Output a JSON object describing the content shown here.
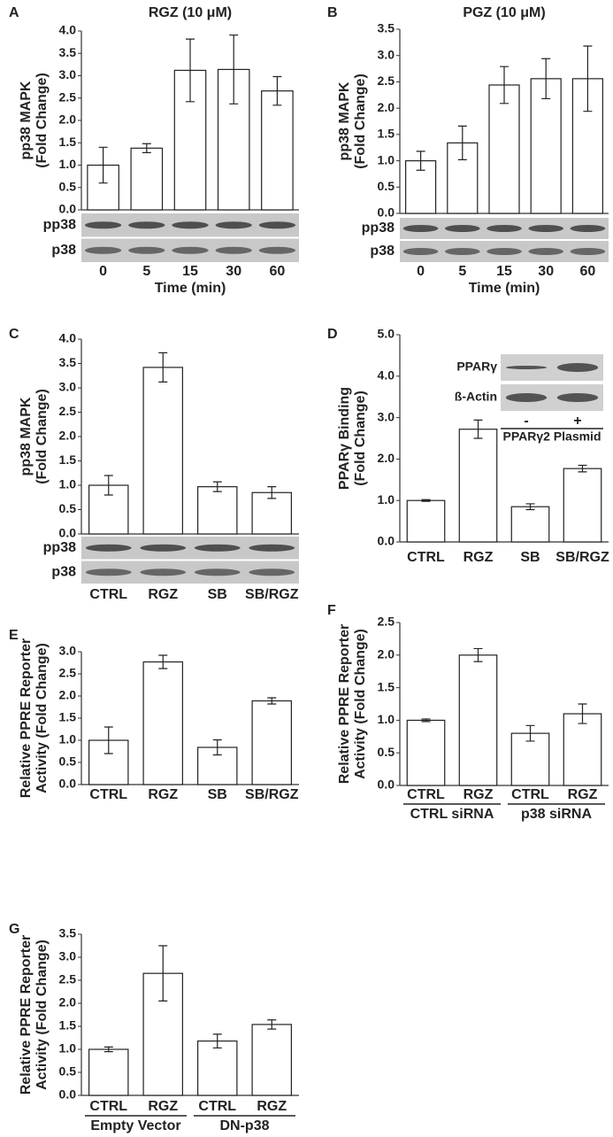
{
  "chart_data": [
    {
      "type": "bar",
      "panel": "A",
      "title": "RGZ (10 μM)",
      "ylabel": [
        "pp38 MAPK",
        "(Fold Change)"
      ],
      "categories": [
        "0",
        "5",
        "15",
        "30",
        "60"
      ],
      "values": [
        1.0,
        1.38,
        3.12,
        3.14,
        2.66
      ],
      "errors": [
        0.4,
        0.1,
        0.7,
        0.77,
        0.32
      ],
      "ylim": [
        0,
        4
      ],
      "yticks": [
        {
          "value": 0,
          "label": "0.0"
        },
        {
          "value": 0.5,
          "label": "0.5"
        },
        {
          "value": 1,
          "label": "1.0"
        },
        {
          "value": 1.5,
          "label": "1.5"
        },
        {
          "value": 2,
          "label": "2.0"
        },
        {
          "value": 2.5,
          "label": "2.5"
        },
        {
          "value": 3,
          "label": "3.0"
        },
        {
          "value": 3.5,
          "label": "3.5"
        },
        {
          "value": 4,
          "label": "4.0"
        }
      ],
      "blot": [
        "pp38",
        "p38"
      ],
      "xlabel": "Time (min)"
    },
    {
      "type": "bar",
      "panel": "B",
      "title": "PGZ (10 μM)",
      "ylabel": [
        "pp38 MAPK",
        "(Fold Change)"
      ],
      "categories": [
        "0",
        "5",
        "15",
        "30",
        "60"
      ],
      "values": [
        1.0,
        1.34,
        2.44,
        2.56,
        2.56
      ],
      "errors": [
        0.18,
        0.32,
        0.35,
        0.38,
        0.62
      ],
      "ylim": [
        0,
        3.5
      ],
      "yticks": [
        {
          "value": 0,
          "label": "0.0"
        },
        {
          "value": 0.5,
          "label": "0.5"
        },
        {
          "value": 1,
          "label": "1.0"
        },
        {
          "value": 1.5,
          "label": "1.5"
        },
        {
          "value": 2,
          "label": "2.0"
        },
        {
          "value": 2.5,
          "label": "2.5"
        },
        {
          "value": 3,
          "label": "3.0"
        },
        {
          "value": 3.5,
          "label": "3.5"
        }
      ],
      "blot": [
        "pp38",
        "p38"
      ],
      "xlabel": "Time (min)"
    },
    {
      "type": "bar",
      "panel": "C",
      "ylabel": [
        "pp38 MAPK",
        "(Fold Change)"
      ],
      "categories": [
        "CTRL",
        "RGZ",
        "SB",
        "SB/RGZ"
      ],
      "values": [
        1.0,
        3.42,
        0.97,
        0.85
      ],
      "errors": [
        0.2,
        0.3,
        0.1,
        0.12
      ],
      "ylim": [
        0,
        4
      ],
      "yticks": [
        {
          "value": 0,
          "label": "0.0"
        },
        {
          "value": 0.5,
          "label": "0.5"
        },
        {
          "value": 1,
          "label": "1.0"
        },
        {
          "value": 1.5,
          "label": "1.5"
        },
        {
          "value": 2,
          "label": "2.0"
        },
        {
          "value": 2.5,
          "label": "2.5"
        },
        {
          "value": 3,
          "label": "3.0"
        },
        {
          "value": 3.5,
          "label": "3.5"
        },
        {
          "value": 4,
          "label": "4.0"
        }
      ],
      "blot": [
        "pp38",
        "p38"
      ]
    },
    {
      "type": "bar",
      "panel": "D",
      "ylabel": [
        "PPARγ Binding",
        "(Fold Change)"
      ],
      "categories": [
        "CTRL",
        "RGZ",
        "SB",
        "SB/RGZ"
      ],
      "values": [
        1.0,
        2.72,
        0.85,
        1.77
      ],
      "errors": [
        0.02,
        0.22,
        0.07,
        0.08
      ],
      "ylim": [
        0,
        5
      ],
      "yticks": [
        {
          "value": 0,
          "label": "0.0"
        },
        {
          "value": 1,
          "label": "1.0"
        },
        {
          "value": 2,
          "label": "2.0"
        },
        {
          "value": 3,
          "label": "3.0"
        },
        {
          "value": 4,
          "label": "4.0"
        },
        {
          "value": 5,
          "label": "5.0"
        }
      ],
      "inset": {
        "rows": [
          "PPARγ",
          "ß-Actin"
        ],
        "lanes": [
          "-",
          "+"
        ],
        "label": "PPARγ2 Plasmid"
      }
    },
    {
      "type": "bar",
      "panel": "E",
      "ylabel": [
        "Relative PPRE Reporter",
        "Activity (Fold Change)"
      ],
      "categories": [
        "CTRL",
        "RGZ",
        "SB",
        "SB/RGZ"
      ],
      "values": [
        1.0,
        2.77,
        0.84,
        1.89
      ],
      "errors": [
        0.3,
        0.15,
        0.17,
        0.07
      ],
      "ylim": [
        0,
        3
      ],
      "yticks": [
        {
          "value": 0,
          "label": "0.0"
        },
        {
          "value": 0.5,
          "label": "0.5"
        },
        {
          "value": 1,
          "label": "1.0"
        },
        {
          "value": 1.5,
          "label": "1.5"
        },
        {
          "value": 2,
          "label": "2.0"
        },
        {
          "value": 2.5,
          "label": "2.5"
        },
        {
          "value": 3,
          "label": "3.0"
        }
      ]
    },
    {
      "type": "bar",
      "panel": "F",
      "ylabel": [
        "Relative PPRE Reporter",
        "Activity (Fold Change)"
      ],
      "categories": [
        "CTRL",
        "RGZ",
        "CTRL",
        "RGZ"
      ],
      "values": [
        1.0,
        2.0,
        0.8,
        1.1
      ],
      "errors": [
        0.02,
        0.1,
        0.12,
        0.15
      ],
      "ylim": [
        0,
        2.5
      ],
      "yticks": [
        {
          "value": 0,
          "label": "0.0"
        },
        {
          "value": 0.5,
          "label": "0.5"
        },
        {
          "value": 1,
          "label": "1.0"
        },
        {
          "value": 1.5,
          "label": "1.5"
        },
        {
          "value": 2,
          "label": "2.0"
        },
        {
          "value": 2.5,
          "label": "2.5"
        }
      ],
      "groups": [
        "CTRL siRNA",
        "p38 siRNA"
      ]
    },
    {
      "type": "bar",
      "panel": "G",
      "ylabel": [
        "Relative PPRE Reporter",
        "Activity (Fold Change)"
      ],
      "categories": [
        "CTRL",
        "RGZ",
        "CTRL",
        "RGZ"
      ],
      "values": [
        1.0,
        2.65,
        1.18,
        1.54
      ],
      "errors": [
        0.05,
        0.6,
        0.15,
        0.1
      ],
      "ylim": [
        0,
        3.5
      ],
      "yticks": [
        {
          "value": 0,
          "label": "0.0"
        },
        {
          "value": 0.5,
          "label": "0.5"
        },
        {
          "value": 1,
          "label": "1.0"
        },
        {
          "value": 1.5,
          "label": "1.5"
        },
        {
          "value": 2,
          "label": "2.0"
        },
        {
          "value": 2.5,
          "label": "2.5"
        },
        {
          "value": 3,
          "label": "3.0"
        },
        {
          "value": 3.5,
          "label": "3.5"
        }
      ],
      "groups": [
        "Empty Vector",
        "DN-p38"
      ]
    }
  ]
}
